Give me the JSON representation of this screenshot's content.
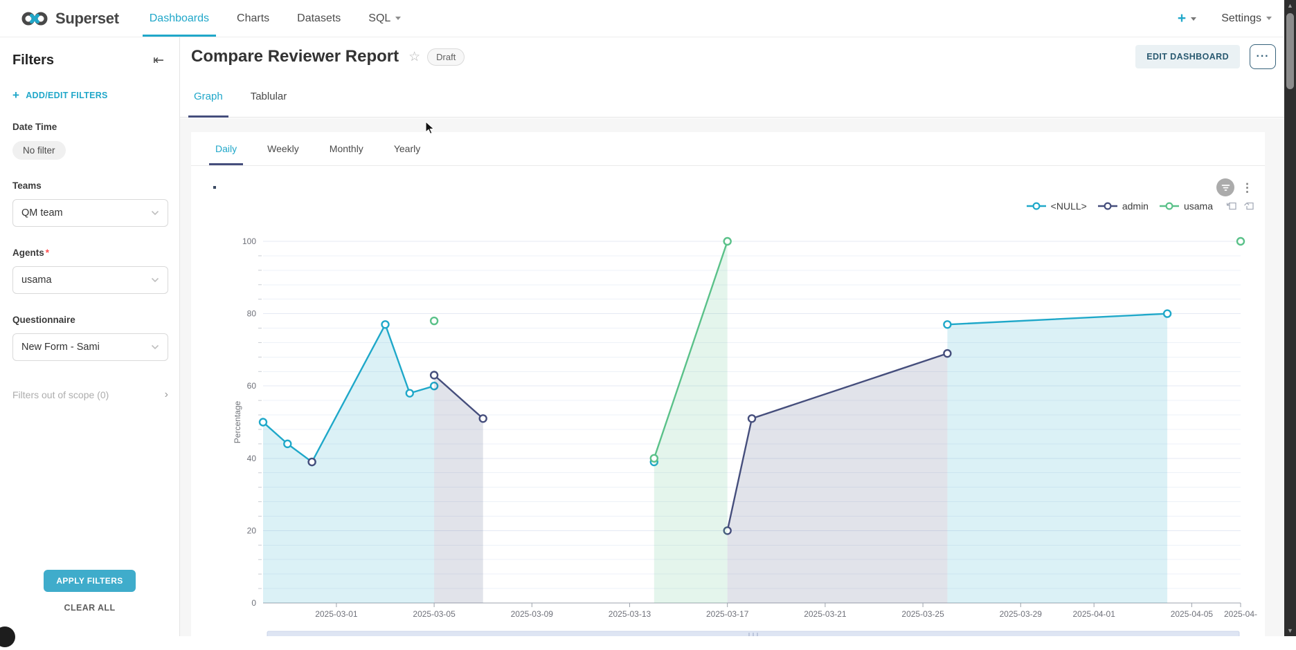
{
  "theme": {
    "accent": "#20A7C9",
    "tab_ink": "#454E7C",
    "apply_button": "#3FACCB"
  },
  "navbar": {
    "brand": "Superset",
    "items": [
      {
        "label": "Dashboards",
        "active": true,
        "caret": false
      },
      {
        "label": "Charts",
        "active": false,
        "caret": false
      },
      {
        "label": "Datasets",
        "active": false,
        "caret": false
      },
      {
        "label": "SQL",
        "active": false,
        "caret": true
      }
    ],
    "plus_label": "+",
    "settings_label": "Settings"
  },
  "sidebar": {
    "title": "Filters",
    "add_edit_label": "ADD/EDIT FILTERS",
    "fields": [
      {
        "label": "Date Time",
        "required": false,
        "control": "pill",
        "value": "No filter"
      },
      {
        "label": "Teams",
        "required": false,
        "control": "select",
        "value": "QM team"
      },
      {
        "label": "Agents",
        "required": true,
        "control": "select",
        "value": "usama"
      },
      {
        "label": "Questionnaire",
        "required": false,
        "control": "select",
        "value": "New Form - Sami"
      }
    ],
    "out_of_scope_label": "Filters out of scope (0)",
    "apply_label": "APPLY FILTERS",
    "clear_label": "CLEAR ALL"
  },
  "header": {
    "title": "Compare Reviewer Report",
    "status_badge": "Draft",
    "edit_button_label": "EDIT DASHBOARD",
    "more_button_label": "···",
    "tabs": [
      {
        "label": "Graph",
        "active": true
      },
      {
        "label": "Tablular",
        "active": false
      }
    ]
  },
  "card": {
    "tabs": [
      {
        "label": "Daily",
        "active": true
      },
      {
        "label": "Weekly",
        "active": false
      },
      {
        "label": "Monthly",
        "active": false
      },
      {
        "label": "Yearly",
        "active": false
      }
    ],
    "chart_title": "."
  },
  "chart_data": {
    "type": "line",
    "title": ".",
    "xlabel": "",
    "ylabel": "Percentage",
    "ylim": [
      0,
      100
    ],
    "y_ticks": [
      0,
      20,
      40,
      60,
      80,
      100
    ],
    "y_minor_step": 4,
    "grid": true,
    "legend_position": "top-right",
    "x_domain": [
      "2025-02-26",
      "2025-04-07"
    ],
    "x_ticks": [
      {
        "date": "2025-03-01",
        "label": "2025-03-01"
      },
      {
        "date": "2025-03-05",
        "label": "2025-03-05"
      },
      {
        "date": "2025-03-09",
        "label": "2025-03-09"
      },
      {
        "date": "2025-03-13",
        "label": "2025-03-13"
      },
      {
        "date": "2025-03-17",
        "label": "2025-03-17"
      },
      {
        "date": "2025-03-21",
        "label": "2025-03-21"
      },
      {
        "date": "2025-03-25",
        "label": "2025-03-25"
      },
      {
        "date": "2025-03-29",
        "label": "2025-03-29"
      },
      {
        "date": "2025-04-01",
        "label": "2025-04-01"
      },
      {
        "date": "2025-04-05",
        "label": "2025-04-05"
      },
      {
        "date": "2025-04-07",
        "label": "2025-04-"
      }
    ],
    "series": [
      {
        "name": "<NULL>",
        "color": "#1FA8C9",
        "segments": [
          [
            {
              "date": "2025-02-26",
              "value": 50
            },
            {
              "date": "2025-02-27",
              "value": 44
            },
            {
              "date": "2025-02-28",
              "value": 39
            },
            {
              "date": "2025-03-03",
              "value": 77
            },
            {
              "date": "2025-03-04",
              "value": 58
            },
            {
              "date": "2025-03-05",
              "value": 60
            }
          ],
          [
            {
              "date": "2025-03-14",
              "value": 39
            }
          ],
          [
            {
              "date": "2025-03-26",
              "value": 77
            },
            {
              "date": "2025-04-04",
              "value": 80
            }
          ]
        ]
      },
      {
        "name": "admin",
        "color": "#454E7C",
        "segments": [
          [
            {
              "date": "2025-02-28",
              "value": 39
            }
          ],
          [
            {
              "date": "2025-03-05",
              "value": 63
            },
            {
              "date": "2025-03-07",
              "value": 51
            }
          ],
          [
            {
              "date": "2025-03-17",
              "value": 20
            },
            {
              "date": "2025-03-18",
              "value": 51
            },
            {
              "date": "2025-03-26",
              "value": 69
            }
          ]
        ]
      },
      {
        "name": "usama",
        "color": "#5AC189",
        "segments": [
          [
            {
              "date": "2025-03-05",
              "value": 78
            }
          ],
          [
            {
              "date": "2025-03-14",
              "value": 40
            },
            {
              "date": "2025-03-17",
              "value": 100
            }
          ],
          [
            {
              "date": "2025-04-07",
              "value": 100
            }
          ]
        ]
      }
    ]
  }
}
